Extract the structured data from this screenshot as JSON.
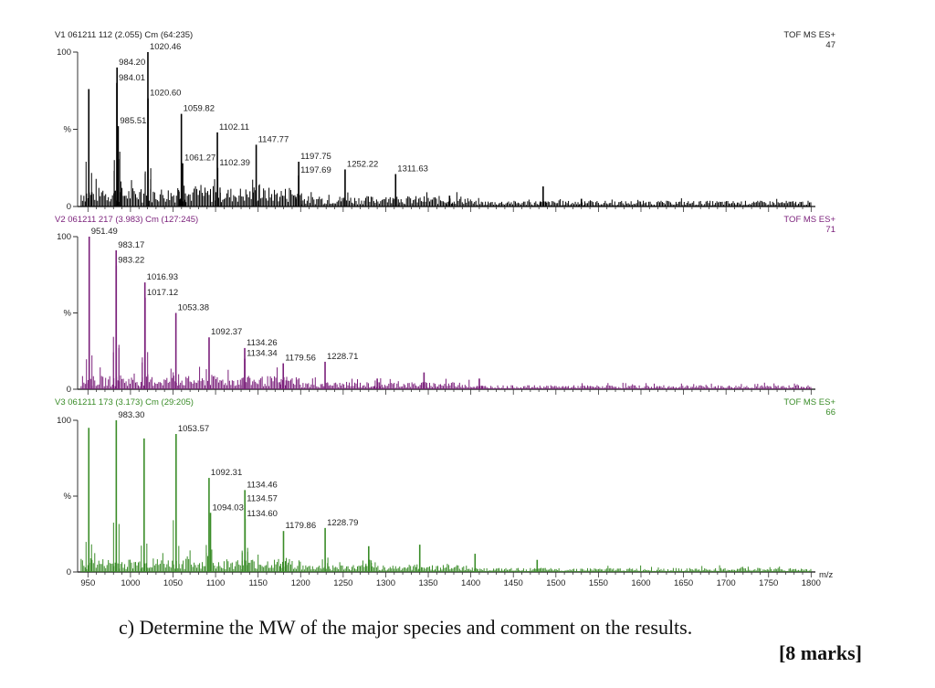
{
  "question": {
    "text": "c) Determine the MW of the major species and comment on the results.",
    "marks": "[8 marks]"
  },
  "chart_data": {
    "type": "line",
    "subtype": "stacked mass spectra",
    "xlabel": "m/z",
    "x_ticks": [
      950,
      1000,
      1050,
      1100,
      1150,
      1200,
      1250,
      1300,
      1350,
      1400,
      1450,
      1500,
      1550,
      1600,
      1650,
      1700,
      1750,
      1800
    ],
    "xlim": [
      940,
      1805
    ],
    "y_ticks": [
      "0",
      "%",
      "100"
    ],
    "ylim": [
      0,
      100
    ],
    "panels": [
      {
        "header": "V1 061211 112 (2.055) Cm (64:235)",
        "mode": "TOF MS ES+",
        "intensity": "47",
        "color": "#000000",
        "peaks": [
          {
            "mz": 951,
            "y": 76
          },
          {
            "mz": 984.01,
            "y": 80,
            "label": "984.01"
          },
          {
            "mz": 984.2,
            "y": 90,
            "label": "984.20"
          },
          {
            "mz": 985.51,
            "y": 52,
            "label": "985.51"
          },
          {
            "mz": 1020.46,
            "y": 100,
            "label": "1020.46"
          },
          {
            "mz": 1020.6,
            "y": 70,
            "label": "1020.60"
          },
          {
            "mz": 1059.82,
            "y": 60,
            "label": "1059.82"
          },
          {
            "mz": 1061.27,
            "y": 28,
            "label": "1061.27"
          },
          {
            "mz": 1102.11,
            "y": 48,
            "label": "1102.11"
          },
          {
            "mz": 1102.39,
            "y": 25,
            "label": "1102.39"
          },
          {
            "mz": 1147.77,
            "y": 40,
            "label": "1147.77"
          },
          {
            "mz": 1197.69,
            "y": 20,
            "label": "1197.69"
          },
          {
            "mz": 1197.75,
            "y": 29,
            "label": "1197.75"
          },
          {
            "mz": 1252.22,
            "y": 24,
            "label": "1252.22"
          },
          {
            "mz": 1311.63,
            "y": 21,
            "label": "1311.63"
          },
          {
            "mz": 1375,
            "y": 7
          },
          {
            "mz": 1485,
            "y": 13
          },
          {
            "mz": 1530,
            "y": 5
          }
        ]
      },
      {
        "header": "V2 061211 217 (3.983) Cm (127:245)",
        "mode": "TOF MS ES+",
        "intensity": "71",
        "color": "#7a1f7a",
        "peaks": [
          {
            "mz": 951.49,
            "y": 100,
            "label": "951.49"
          },
          {
            "mz": 983.17,
            "y": 91,
            "label": "983.17"
          },
          {
            "mz": 983.22,
            "y": 81,
            "label": "983.22"
          },
          {
            "mz": 1016.93,
            "y": 70,
            "label": "1016.93"
          },
          {
            "mz": 1017.12,
            "y": 60,
            "label": "1017.12"
          },
          {
            "mz": 1053.38,
            "y": 50,
            "label": "1053.38"
          },
          {
            "mz": 1092.37,
            "y": 34,
            "label": "1092.37"
          },
          {
            "mz": 1134.26,
            "y": 27,
            "label": "1134.26"
          },
          {
            "mz": 1134.34,
            "y": 20,
            "label": "1134.34"
          },
          {
            "mz": 1179.56,
            "y": 17,
            "label": "1179.56"
          },
          {
            "mz": 1228.71,
            "y": 18,
            "label": "1228.71"
          },
          {
            "mz": 1290,
            "y": 7
          },
          {
            "mz": 1345,
            "y": 11
          },
          {
            "mz": 1410,
            "y": 7
          }
        ]
      },
      {
        "header": "V3 061211 173 (3.173) Cm (29:205)",
        "mode": "TOF MS ES+",
        "intensity": "66",
        "color": "#3a8c28",
        "peaks": [
          {
            "mz": 951,
            "y": 95
          },
          {
            "mz": 983.3,
            "y": 100,
            "label": "983.30"
          },
          {
            "mz": 1016,
            "y": 88
          },
          {
            "mz": 1053.57,
            "y": 91,
            "label": "1053.57"
          },
          {
            "mz": 1092.31,
            "y": 62,
            "label": "1092.31"
          },
          {
            "mz": 1094.03,
            "y": 39,
            "label": "1094.03"
          },
          {
            "mz": 1134.46,
            "y": 54,
            "label": "1134.46"
          },
          {
            "mz": 1134.57,
            "y": 45,
            "label": "1134.57"
          },
          {
            "mz": 1134.6,
            "y": 35,
            "label": "1134.60"
          },
          {
            "mz": 1179.86,
            "y": 27,
            "label": "1179.86"
          },
          {
            "mz": 1228.79,
            "y": 29,
            "label": "1228.79"
          },
          {
            "mz": 1280,
            "y": 17
          },
          {
            "mz": 1340,
            "y": 18
          },
          {
            "mz": 1405,
            "y": 12
          },
          {
            "mz": 1478,
            "y": 8
          }
        ]
      }
    ]
  }
}
